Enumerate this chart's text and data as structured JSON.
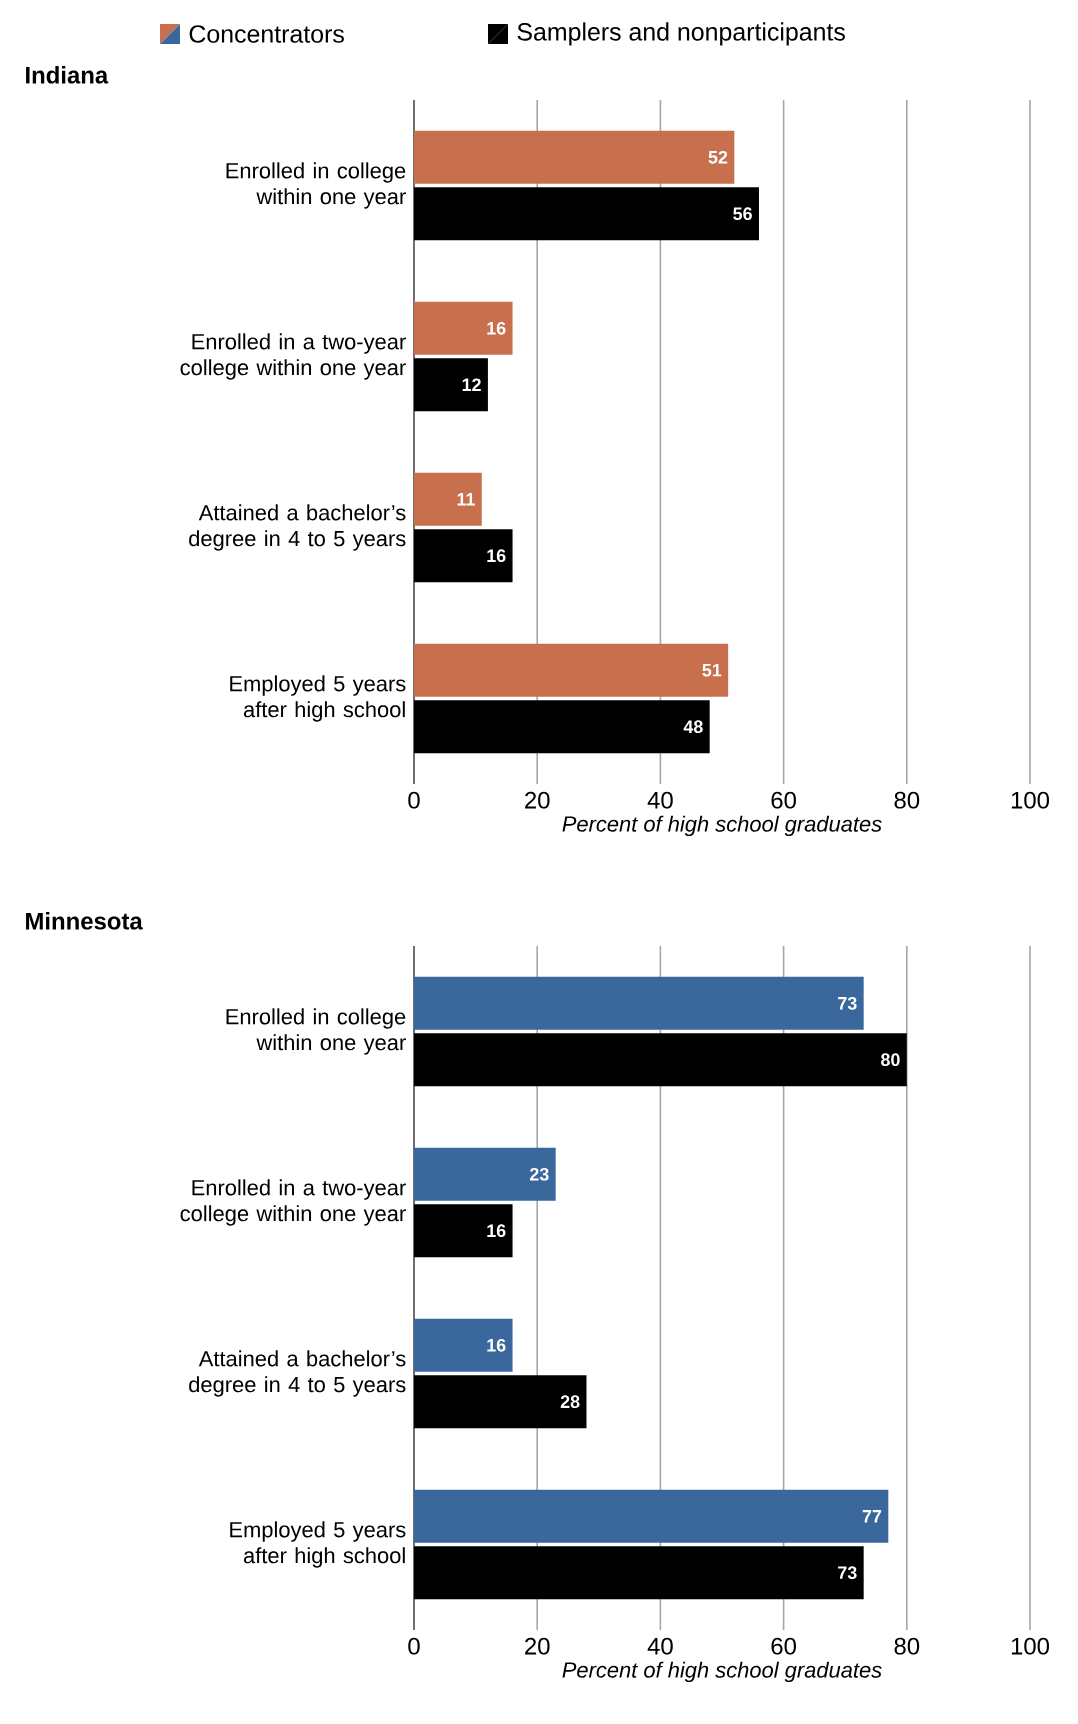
{
  "chart_data": [
    {
      "type": "bar",
      "orientation": "horizontal",
      "title": "Indiana",
      "xlabel": "Percent of high school graduates",
      "categories": [
        "Enrolled in college within one year",
        "Enrolled in a two-year college within one year",
        "Attained a bachelor’s degree in 4 to 5 years",
        "Employed 5 years after high school"
      ],
      "series": [
        {
          "name": "Concentrators",
          "color": "#c8704e",
          "values": [
            52,
            16,
            11,
            51
          ]
        },
        {
          "name": "Samplers and nonparticipants",
          "color": "#000000",
          "values": [
            56,
            12,
            16,
            48
          ]
        }
      ],
      "xlim": [
        0,
        100
      ],
      "xticks": [
        0,
        20,
        40,
        60,
        80,
        100
      ],
      "grid": "x",
      "legend": "top",
      "data_labels": true
    },
    {
      "type": "bar",
      "orientation": "horizontal",
      "title": "Minnesota",
      "xlabel": "Percent of high school graduates",
      "categories": [
        "Enrolled in college within one year",
        "Enrolled in a two-year college within one year",
        "Attained a bachelor’s degree in 4 to 5 years",
        "Employed 5 years after high school"
      ],
      "series": [
        {
          "color": "#3a679c",
          "values": [
            73,
            23,
            16,
            77
          ]
        },
        {
          "color": "#000000",
          "values": [
            80,
            16,
            28,
            73
          ]
        }
      ],
      "xlim": [
        0,
        100
      ],
      "xticks": [
        0,
        20,
        40,
        60,
        80,
        100
      ],
      "grid": "x",
      "data_labels": true
    }
  ]
}
